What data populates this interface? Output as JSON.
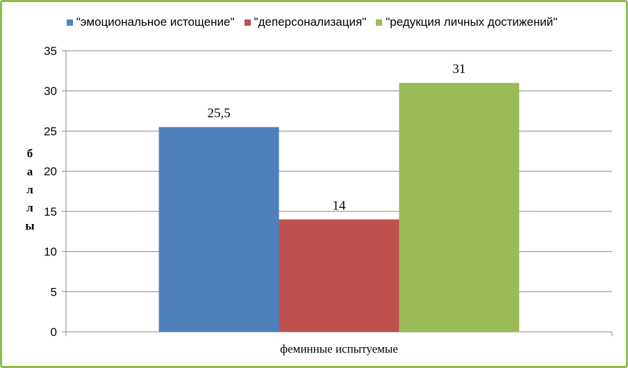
{
  "chart_data": {
    "type": "bar",
    "title": "",
    "categories": [
      "феминные испытуемые"
    ],
    "series": [
      {
        "name": "\"эмоциональное истощение\"",
        "values": [
          25.5
        ],
        "label": "25,5",
        "color": "#4f81bd"
      },
      {
        "name": "\"деперсонализация\"",
        "values": [
          14
        ],
        "label": "14",
        "color": "#c0504d"
      },
      {
        "name": "\"редукция личных достижений\"",
        "values": [
          31
        ],
        "label": "31",
        "color": "#9bbb59"
      }
    ],
    "ylabel": "баллы",
    "xlabel": "",
    "ylim": [
      0,
      35
    ],
    "yticks": [
      0,
      5,
      10,
      15,
      20,
      25,
      30,
      35
    ],
    "grid": true,
    "legend_position": "top"
  }
}
